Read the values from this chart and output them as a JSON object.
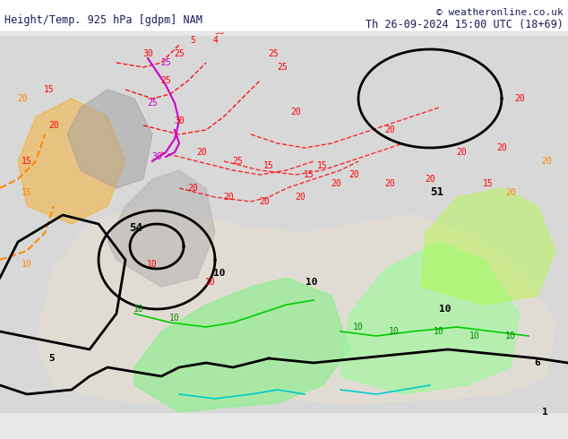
{
  "title_left": "Height/Temp. 925 hPa [gdpm] NAM",
  "title_right": "Th 26-09-2024 15:00 UTC (18+69)",
  "copyright": "© weatheronline.co.uk",
  "bg_color": "#e8e8e8",
  "text_color": "#1a1a5e",
  "figsize": [
    6.34,
    4.9
  ],
  "dpi": 100
}
